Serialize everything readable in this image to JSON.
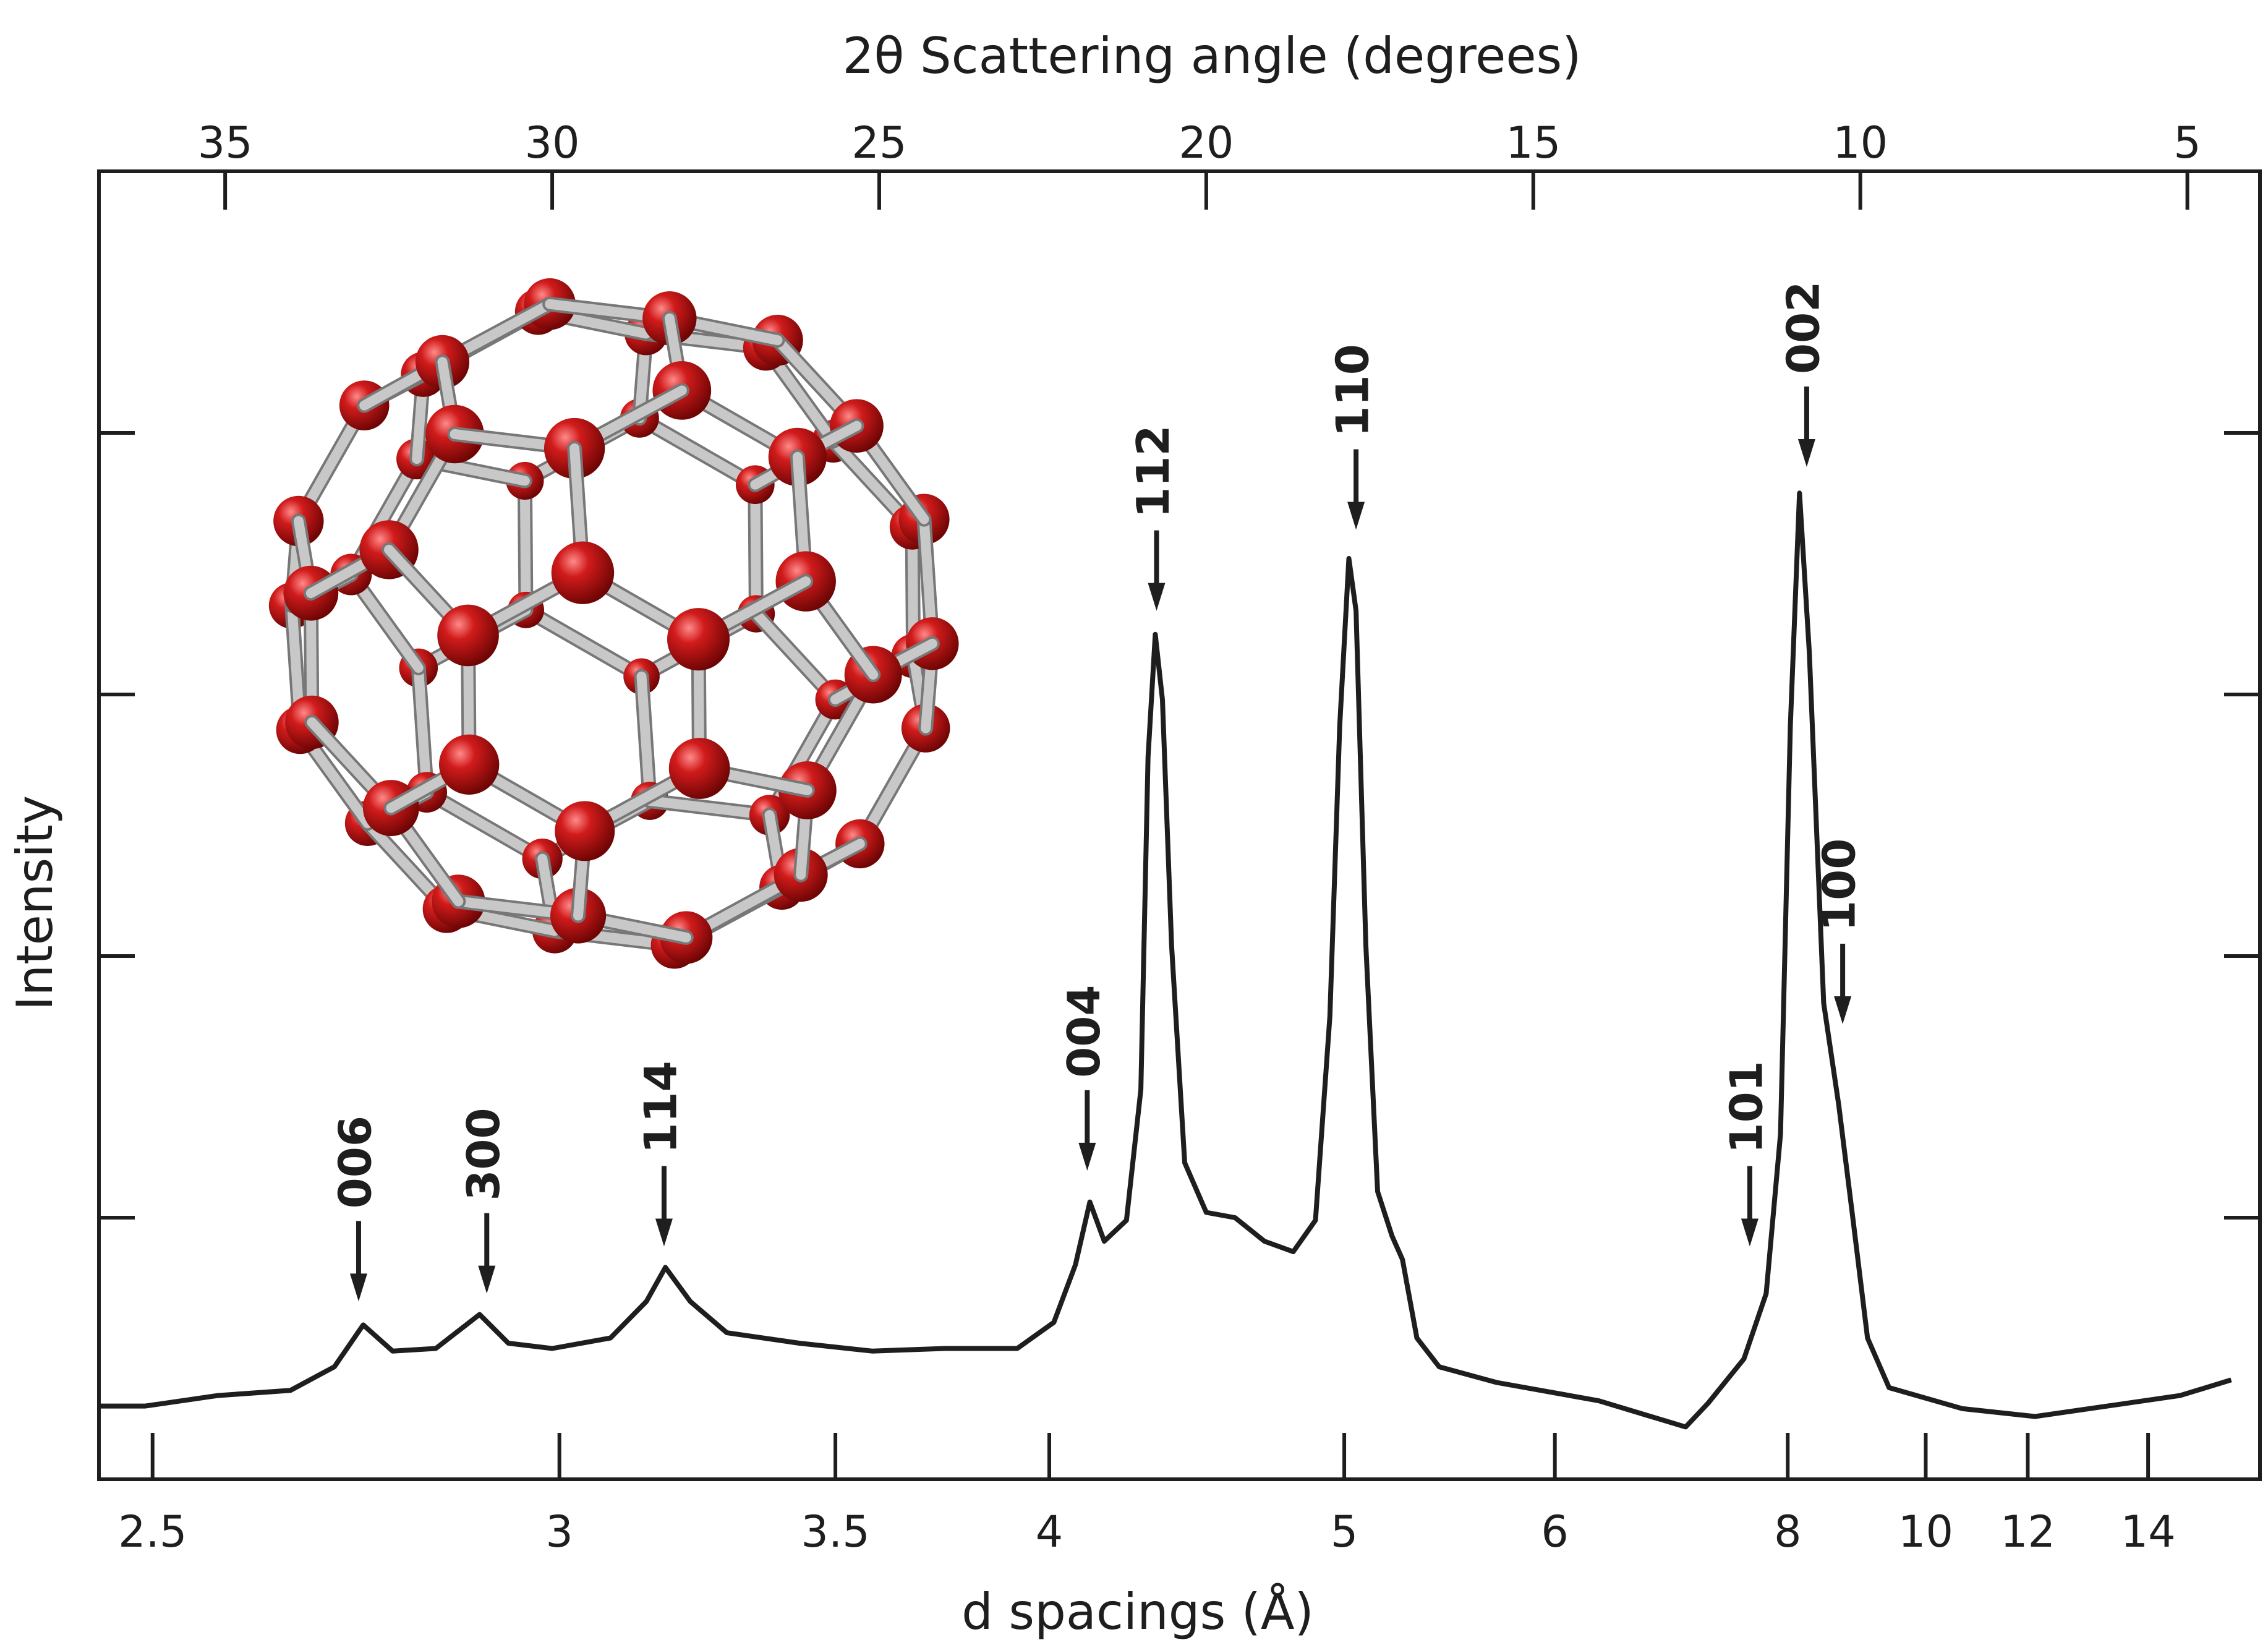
{
  "chart_data": {
    "type": "line",
    "x_label": "2θ Scattering angle (degrees)",
    "x2_label": "d spacings (Å)",
    "y_label": "Intensity",
    "xlim": [
      36.93,
      3.89
    ],
    "xticks": [
      35,
      30,
      25,
      20,
      15,
      10,
      5
    ],
    "x2ticks": [
      {
        "value": 36.11,
        "label": "2.5"
      },
      {
        "value": 29.89,
        "label": "3"
      },
      {
        "value": 25.67,
        "label": "3.5"
      },
      {
        "value": 22.4,
        "label": "4"
      },
      {
        "value": 17.89,
        "label": "5"
      },
      {
        "value": 14.67,
        "label": "6"
      },
      {
        "value": 11.11,
        "label": "8"
      },
      {
        "value": 9.0,
        "label": "10"
      },
      {
        "value": 7.44,
        "label": "12"
      },
      {
        "value": 5.6,
        "label": "14"
      }
    ],
    "ylim": [
      0,
      5
    ],
    "yticks": [
      1,
      2,
      3,
      4
    ],
    "color": "#1e1e1e",
    "x": [
      36.93,
      36.22,
      35.11,
      34.0,
      33.33,
      32.89,
      32.44,
      31.78,
      31.11,
      30.67,
      30.0,
      29.11,
      28.56,
      28.27,
      27.89,
      27.33,
      26.22,
      25.11,
      24.0,
      22.89,
      22.33,
      22.0,
      21.78,
      21.56,
      21.22,
      21.0,
      20.89,
      20.78,
      20.67,
      20.53,
      20.33,
      20.0,
      19.56,
      19.11,
      18.67,
      18.33,
      18.11,
      17.96,
      17.82,
      17.71,
      17.56,
      17.38,
      17.16,
      17.0,
      16.78,
      16.44,
      15.56,
      14.0,
      12.67,
      12.33,
      11.78,
      11.44,
      11.22,
      11.07,
      10.93,
      10.78,
      10.56,
      10.33,
      10.11,
      9.89,
      9.56,
      8.44,
      7.33,
      6.22,
      5.11,
      4.33
    ],
    "values": [
      0.28,
      0.28,
      0.32,
      0.34,
      0.43,
      0.59,
      0.49,
      0.5,
      0.63,
      0.52,
      0.5,
      0.54,
      0.68,
      0.81,
      0.68,
      0.56,
      0.52,
      0.49,
      0.5,
      0.5,
      0.6,
      0.82,
      1.06,
      0.91,
      0.99,
      1.49,
      2.76,
      3.23,
      2.98,
      2.04,
      1.21,
      1.02,
      1.0,
      0.91,
      0.87,
      0.99,
      1.77,
      2.88,
      3.52,
      3.32,
      2.04,
      1.1,
      0.93,
      0.84,
      0.54,
      0.43,
      0.37,
      0.3,
      0.2,
      0.29,
      0.46,
      0.71,
      1.32,
      2.88,
      3.77,
      3.16,
      1.82,
      1.43,
      0.99,
      0.54,
      0.35,
      0.27,
      0.24,
      0.28,
      0.32,
      0.38
    ],
    "annotations": [
      {
        "text": "006",
        "x": 32.96,
        "y": 0.68
      },
      {
        "text": "300",
        "x": 31.0,
        "y": 0.71
      },
      {
        "text": "114",
        "x": 28.29,
        "y": 0.89
      },
      {
        "text": "004",
        "x": 21.82,
        "y": 1.18
      },
      {
        "text": "112",
        "x": 20.76,
        "y": 3.32
      },
      {
        "text": "110",
        "x": 17.71,
        "y": 3.63
      },
      {
        "text": "101",
        "x": 11.69,
        "y": 0.89
      },
      {
        "text": "002",
        "x": 10.82,
        "y": 3.87
      },
      {
        "text": "100",
        "x": 10.27,
        "y": 1.74
      }
    ]
  }
}
